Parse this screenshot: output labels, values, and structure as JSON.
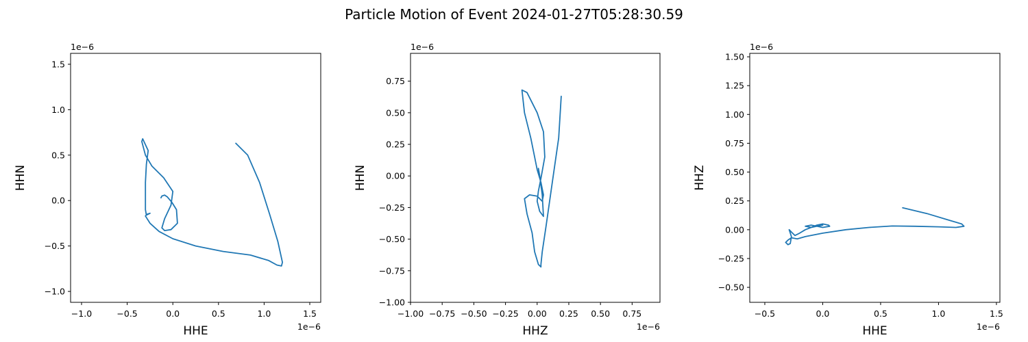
{
  "figure": {
    "title": "Particle Motion of Event 2024-01-27T05:28:30.59"
  },
  "chart_data": [
    {
      "type": "line",
      "xlabel": "HHE",
      "ylabel": "HHN",
      "x_offset_label": "1e−6",
      "y_offset_label": "1e−6",
      "xlim": [
        -1.12,
        1.62
      ],
      "ylim": [
        -1.12,
        1.62
      ],
      "xticks": [
        -1.0,
        -0.5,
        0.0,
        0.5,
        1.0,
        1.5
      ],
      "xtick_labels": [
        "−1.0",
        "−0.5",
        "0.0",
        "0.5",
        "1.0",
        "1.5"
      ],
      "yticks": [
        -1.0,
        -0.5,
        0.0,
        0.5,
        1.0,
        1.5
      ],
      "ytick_labels": [
        "−1.0",
        "−0.5",
        "0.0",
        "0.5",
        "1.0",
        "1.5"
      ],
      "grid": false,
      "color": "#1f77b4",
      "x": [
        0.69,
        0.82,
        0.95,
        1.06,
        1.15,
        1.2,
        1.19,
        1.14,
        1.05,
        0.85,
        0.55,
        0.25,
        0.0,
        -0.15,
        -0.25,
        -0.3,
        -0.28,
        -0.25,
        -0.29,
        -0.3,
        -0.3,
        -0.29,
        -0.27,
        -0.33,
        -0.34,
        -0.3,
        -0.23,
        -0.1,
        0.0,
        -0.02,
        -0.09,
        -0.12,
        -0.09,
        -0.02,
        0.05,
        0.04,
        -0.01,
        -0.06,
        -0.09,
        -0.12,
        -0.13
      ],
      "y": [
        0.63,
        0.5,
        0.2,
        -0.15,
        -0.45,
        -0.68,
        -0.72,
        -0.71,
        -0.66,
        -0.6,
        -0.56,
        -0.5,
        -0.42,
        -0.34,
        -0.25,
        -0.17,
        -0.15,
        -0.14,
        -0.16,
        -0.1,
        0.2,
        0.4,
        0.55,
        0.68,
        0.65,
        0.5,
        0.38,
        0.25,
        0.1,
        -0.05,
        -0.2,
        -0.3,
        -0.33,
        -0.32,
        -0.25,
        -0.1,
        -0.02,
        0.04,
        0.06,
        0.05,
        0.03
      ]
    },
    {
      "type": "line",
      "xlabel": "HHZ",
      "ylabel": "HHN",
      "x_offset_label": "1e−6",
      "y_offset_label": "1e−6",
      "xlim": [
        -1.0,
        0.97
      ],
      "ylim": [
        -1.0,
        0.97
      ],
      "xticks": [
        -1.0,
        -0.75,
        -0.5,
        -0.25,
        0.0,
        0.25,
        0.5,
        0.75
      ],
      "xtick_labels": [
        "−1.00",
        "−0.75",
        "−0.50",
        "−0.25",
        "0.00",
        "0.25",
        "0.50",
        "0.75"
      ],
      "yticks": [
        -1.0,
        -0.75,
        -0.5,
        -0.25,
        0.0,
        0.25,
        0.5,
        0.75
      ],
      "ytick_labels": [
        "−1.00",
        "−0.75",
        "−0.50",
        "−0.25",
        "0.00",
        "0.25",
        "0.50",
        "0.75"
      ],
      "grid": false,
      "color": "#1f77b4",
      "x": [
        0.19,
        0.17,
        0.12,
        0.07,
        0.04,
        0.03,
        0.03,
        0.01,
        -0.02,
        -0.04,
        -0.08,
        -0.1,
        -0.06,
        0.0,
        0.04,
        0.05,
        0.03,
        0.0,
        -0.02,
        -0.05,
        -0.1,
        -0.12,
        -0.08,
        0.0,
        0.05,
        0.06,
        0.03,
        0.01,
        0.0,
        0.02,
        0.05,
        0.04,
        0.02,
        0.01
      ],
      "y": [
        0.63,
        0.3,
        -0.05,
        -0.4,
        -0.6,
        -0.7,
        -0.72,
        -0.7,
        -0.6,
        -0.45,
        -0.3,
        -0.18,
        -0.15,
        -0.16,
        -0.2,
        -0.15,
        -0.05,
        0.05,
        0.15,
        0.3,
        0.5,
        0.68,
        0.66,
        0.5,
        0.35,
        0.15,
        -0.02,
        -0.12,
        -0.2,
        -0.28,
        -0.32,
        -0.15,
        0.0,
        0.06
      ]
    },
    {
      "type": "line",
      "xlabel": "HHE",
      "ylabel": "HHZ",
      "x_offset_label": "1e−6",
      "y_offset_label": "1e−6",
      "xlim": [
        -0.63,
        1.53
      ],
      "ylim": [
        -0.63,
        1.53
      ],
      "xticks": [
        -0.5,
        0.0,
        0.5,
        1.0,
        1.5
      ],
      "xtick_labels": [
        "−0.5",
        "0.0",
        "0.5",
        "1.0",
        "1.5"
      ],
      "yticks": [
        -0.5,
        -0.25,
        0.0,
        0.25,
        0.5,
        0.75,
        1.0,
        1.25,
        1.5
      ],
      "ytick_labels": [
        "−0.50",
        "−0.25",
        "0.00",
        "0.25",
        "0.50",
        "0.75",
        "1.00",
        "1.25",
        "1.50"
      ],
      "grid": false,
      "color": "#1f77b4",
      "x": [
        0.69,
        0.9,
        1.1,
        1.2,
        1.22,
        1.15,
        1.0,
        0.8,
        0.6,
        0.4,
        0.2,
        0.0,
        -0.15,
        -0.22,
        -0.27,
        -0.3,
        -0.32,
        -0.3,
        -0.28,
        -0.27,
        -0.29,
        -0.27,
        -0.24,
        -0.2,
        -0.15,
        -0.1,
        -0.05,
        0.0,
        0.05,
        0.06,
        0.0,
        -0.05,
        -0.1,
        -0.15,
        -0.1,
        -0.05,
        0.0
      ],
      "y": [
        0.19,
        0.14,
        0.08,
        0.05,
        0.03,
        0.02,
        0.025,
        0.03,
        0.032,
        0.02,
        0.0,
        -0.03,
        -0.06,
        -0.08,
        -0.07,
        -0.09,
        -0.11,
        -0.13,
        -0.12,
        -0.06,
        0.0,
        -0.02,
        -0.05,
        -0.03,
        0.0,
        0.02,
        0.04,
        0.05,
        0.04,
        0.03,
        0.02,
        0.03,
        0.04,
        0.03,
        0.02,
        0.03,
        0.04
      ]
    }
  ]
}
